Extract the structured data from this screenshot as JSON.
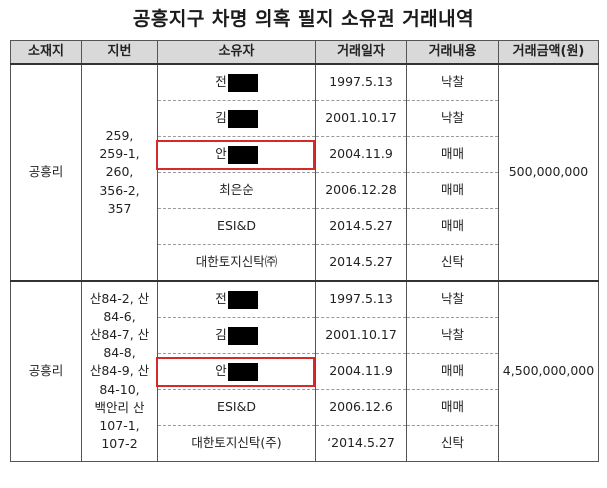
{
  "title": "공흥지구 차명 의혹 필지 소유권 거래내역",
  "headers": [
    "소재지",
    "지번",
    "소유자",
    "거래일자",
    "거래내용",
    "거래금액(원)"
  ],
  "groups": [
    {
      "location": "공흥리",
      "lot": "259,\n259-1,\n260,\n356-2,\n357",
      "amount": "500,000,000",
      "rows": [
        {
          "owner": "전",
          "masked": true,
          "date": "1997.5.13",
          "type": "낙찰"
        },
        {
          "owner": "김",
          "masked": true,
          "date": "2001.10.17",
          "type": "낙찰"
        },
        {
          "owner": "안",
          "masked": true,
          "highlight": true,
          "date": "2004.11.9",
          "type": "매매"
        },
        {
          "owner": "최은순",
          "masked": false,
          "date": "2006.12.28",
          "type": "매매"
        },
        {
          "owner": "ESI&D",
          "masked": false,
          "date": "2014.5.27",
          "type": "매매"
        },
        {
          "owner": "대한토지신탁㈜",
          "masked": false,
          "date": "2014.5.27",
          "type": "신탁"
        }
      ]
    },
    {
      "location": "공흥리",
      "lot": "산84-2, 산\n84-6,\n산84-7, 산\n84-8,\n산84-9, 산\n84-10,\n백안리 산\n107-1,\n107-2",
      "amount": "4,500,000,000",
      "rows": [
        {
          "owner": "전",
          "masked": true,
          "date": "1997.5.13",
          "type": "낙찰"
        },
        {
          "owner": "김",
          "masked": true,
          "date": "2001.10.17",
          "type": "낙찰"
        },
        {
          "owner": "안",
          "masked": true,
          "highlight": true,
          "date": "2004.11.9",
          "type": "매매"
        },
        {
          "owner": "ESI&D",
          "masked": false,
          "date": "2006.12.6",
          "type": "매매"
        },
        {
          "owner": "대한토지신탁(주)",
          "masked": false,
          "date": "‘2014.5.27",
          "type": "신탁"
        }
      ]
    }
  ]
}
